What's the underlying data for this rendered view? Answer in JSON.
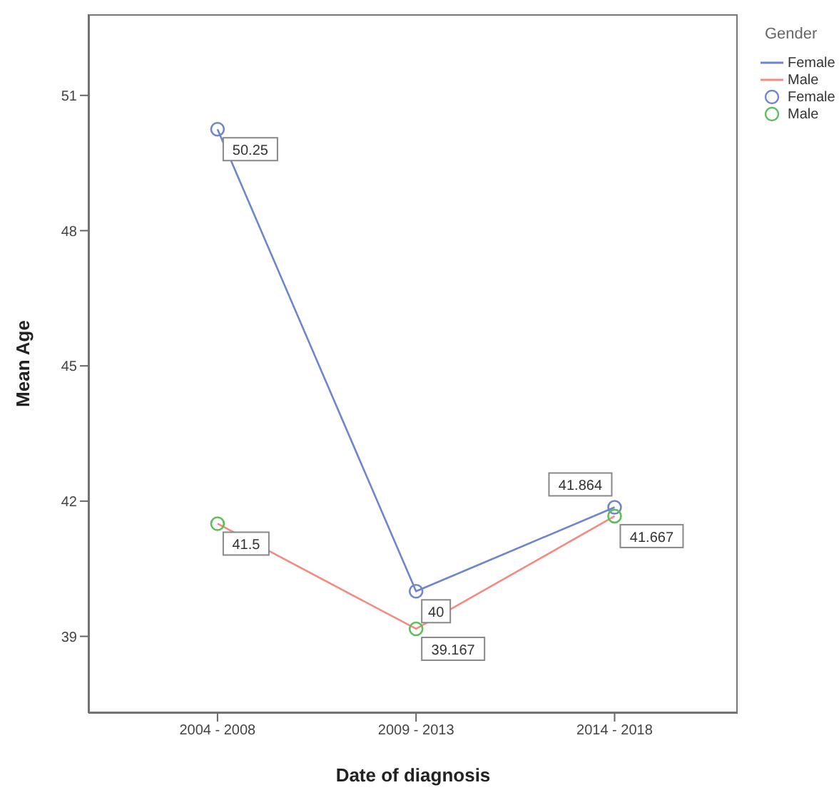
{
  "chart_data": {
    "type": "line",
    "xlabel": "Date of diagnosis",
    "ylabel": "Mean Age",
    "legend_title": "Gender",
    "categories": [
      "2004 - 2008",
      "2009 - 2013",
      "2014 - 2018"
    ],
    "series": [
      {
        "name": "Female",
        "color": "#6f86cc",
        "values": [
          50.25,
          40,
          41.864
        ]
      },
      {
        "name": "Male",
        "color": "#f28b82",
        "values": [
          41.5,
          39.167,
          41.667
        ]
      },
      {
        "name": "Female",
        "type": "scatter",
        "marker": "circle",
        "color": "#6f86cc",
        "values": [
          50.25,
          40,
          41.864
        ],
        "value_labels": [
          "50.25",
          "40",
          "41.864"
        ]
      },
      {
        "name": "Male",
        "type": "scatter",
        "marker": "circle",
        "color": "#5cbf5c",
        "values": [
          41.5,
          39.167,
          41.667
        ],
        "value_labels": [
          "41.5",
          "39.167",
          "41.667"
        ]
      }
    ],
    "ylim": [
      37.3,
      52.8
    ],
    "yticks": [
      39,
      42,
      45,
      48,
      51
    ],
    "grid": false,
    "legend": "top right"
  }
}
